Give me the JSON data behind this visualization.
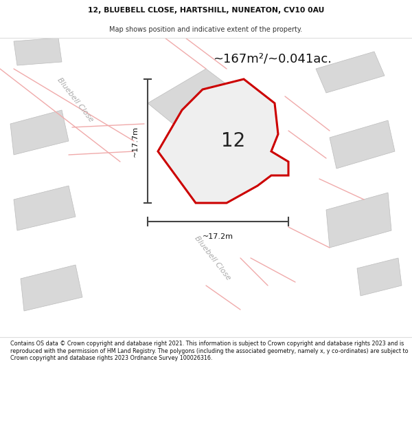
{
  "title_line1": "12, BLUEBELL CLOSE, HARTSHILL, NUNEATON, CV10 0AU",
  "title_line2": "Map shows position and indicative extent of the property.",
  "area_text": "~167m²/~0.041ac.",
  "number_label": "12",
  "dim_vertical": "~17.7m",
  "dim_horizontal": "~17.2m",
  "road_label1": "Bluebell Close",
  "road_label2": "Bluebell Close",
  "footer_text": "Contains OS data © Crown copyright and database right 2021. This information is subject to Crown copyright and database rights 2023 and is reproduced with the permission of HM Land Registry. The polygons (including the associated geometry, namely x, y co-ordinates) are subject to Crown copyright and database rights 2023 Ordnance Survey 100026316.",
  "map_bg": "#efefef",
  "road_color": "#ffffff",
  "building_color": "#d8d8d8",
  "building_edge": "#bbbbbb",
  "property_fill": "#efefef",
  "property_edge": "#cc0000",
  "pink_line": "#f0aaaa",
  "title_bg": "#ffffff",
  "footer_bg": "#ffffff",
  "dim_line_color": "#444444",
  "road_text_color": "#aaaaaa",
  "number_color": "#222222"
}
